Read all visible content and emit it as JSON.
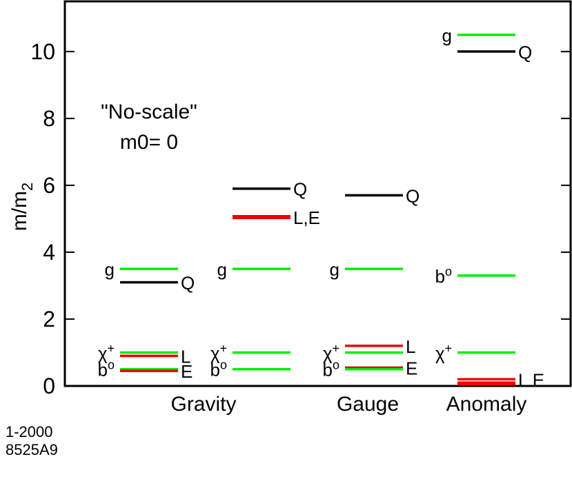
{
  "chart_data": {
    "type": "level-diagram",
    "ylabel_main": "m/m",
    "ylabel_sub": "2",
    "ylim": [
      0,
      11.5
    ],
    "yticks": [
      "0",
      "2",
      "4",
      "6",
      "8",
      "10"
    ],
    "annotation": [
      "\"No-scale\"",
      "m0= 0"
    ],
    "columns": [
      "Gravity",
      "Gauge",
      "Anomaly"
    ],
    "colors": {
      "green": "#00ee00",
      "red": "#ee0000",
      "black": "#000000"
    },
    "levels": [
      {
        "group": 0,
        "value": 3.5,
        "color": "green",
        "label": "g",
        "label_side": "left"
      },
      {
        "group": 0,
        "value": 3.1,
        "color": "black",
        "label": "Q",
        "label_side": "right"
      },
      {
        "group": 0,
        "value": 1.0,
        "color": "green",
        "label": "χ",
        "sup": "+",
        "label_side": "left"
      },
      {
        "group": 0,
        "value": 0.9,
        "color": "red",
        "label": "L",
        "label_side": "right"
      },
      {
        "group": 0,
        "value": 0.5,
        "color": "green",
        "label": "b",
        "sup": "o",
        "label_side": "left"
      },
      {
        "group": 0,
        "value": 0.45,
        "color": "red",
        "label": "E",
        "label_side": "right"
      },
      {
        "group": 1,
        "value": 5.9,
        "color": "black",
        "label": "Q",
        "label_side": "right"
      },
      {
        "group": 1,
        "value": 5.05,
        "color": "red",
        "label": "L,E",
        "label_side": "right",
        "thick": true
      },
      {
        "group": 1,
        "value": 3.5,
        "color": "green",
        "label": "g",
        "label_side": "left"
      },
      {
        "group": 1,
        "value": 1.0,
        "color": "green",
        "label": "χ",
        "sup": "+",
        "label_side": "left"
      },
      {
        "group": 1,
        "value": 0.5,
        "color": "green",
        "label": "b",
        "sup": "o",
        "label_side": "left"
      },
      {
        "group": 2,
        "value": 5.7,
        "color": "black",
        "label": "Q",
        "label_side": "right"
      },
      {
        "group": 2,
        "value": 3.5,
        "color": "green",
        "label": "g",
        "label_side": "left"
      },
      {
        "group": 2,
        "value": 1.2,
        "color": "red",
        "label": "L",
        "label_side": "right"
      },
      {
        "group": 2,
        "value": 1.0,
        "color": "green",
        "label": "χ",
        "sup": "+",
        "label_side": "left"
      },
      {
        "group": 2,
        "value": 0.55,
        "color": "red",
        "label": "E",
        "label_side": "right"
      },
      {
        "group": 2,
        "value": 0.5,
        "color": "green",
        "label": "b",
        "sup": "o",
        "label_side": "left"
      },
      {
        "group": 3,
        "value": 10.5,
        "color": "green",
        "label": "g",
        "label_side": "left"
      },
      {
        "group": 3,
        "value": 10.0,
        "color": "black",
        "label": "Q",
        "label_side": "right"
      },
      {
        "group": 3,
        "value": 3.3,
        "color": "green",
        "label": "b",
        "sup": "o",
        "label_side": "left"
      },
      {
        "group": 3,
        "value": 1.0,
        "color": "green",
        "label": "χ",
        "sup": "+",
        "label_side": "left"
      },
      {
        "group": 3,
        "value": 0.2,
        "color": "red",
        "label": "L E",
        "label_side": "right"
      },
      {
        "group": 3,
        "value": 0.1,
        "color": "red"
      },
      {
        "group": 3,
        "value": 0.05,
        "color": "red"
      }
    ]
  },
  "footer": {
    "line1": "1-2000",
    "line2": "8525A9"
  }
}
